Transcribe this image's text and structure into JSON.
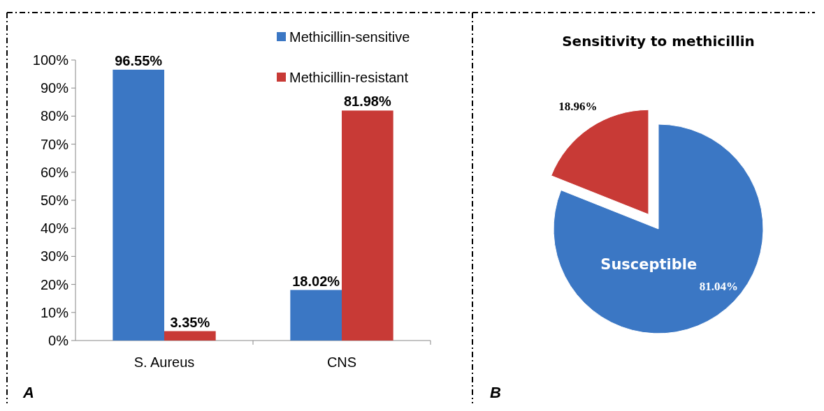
{
  "chart_data": [
    {
      "type": "bar",
      "categories": [
        "S. Aureus",
        "CNS"
      ],
      "series": [
        {
          "name": "Methicillin-sensitive",
          "color": "#3b77c4",
          "values": [
            96.55,
            18.02
          ],
          "value_labels": [
            "96.55%",
            "18.02%"
          ]
        },
        {
          "name": "Methicillin-resistant",
          "color": "#c83a36",
          "values": [
            3.35,
            81.98
          ],
          "value_labels": [
            "3.35%",
            "81.98%"
          ]
        }
      ],
      "ylim": [
        0,
        100
      ],
      "yticks": [
        {
          "value": 0,
          "label": "0%"
        },
        {
          "value": 10,
          "label": "10%"
        },
        {
          "value": 20,
          "label": "20%"
        },
        {
          "value": 30,
          "label": "30%"
        },
        {
          "value": 40,
          "label": "40%"
        },
        {
          "value": 50,
          "label": "50%"
        },
        {
          "value": 60,
          "label": "60%"
        },
        {
          "value": 70,
          "label": "70%"
        },
        {
          "value": 80,
          "label": "80%"
        },
        {
          "value": 90,
          "label": "90%"
        },
        {
          "value": 100,
          "label": "100%"
        }
      ],
      "legend": "top right",
      "annotations": [
        "A"
      ]
    },
    {
      "type": "pie",
      "title": "Sensitivity to methicillin",
      "categories": [
        "Susceptible",
        null
      ],
      "values": [
        81.04,
        18.96
      ],
      "colors": [
        "#3b77c4",
        "#c83a36"
      ],
      "value_labels": [
        "81.04%",
        "18.96%"
      ],
      "annotations": [
        "B"
      ]
    }
  ]
}
